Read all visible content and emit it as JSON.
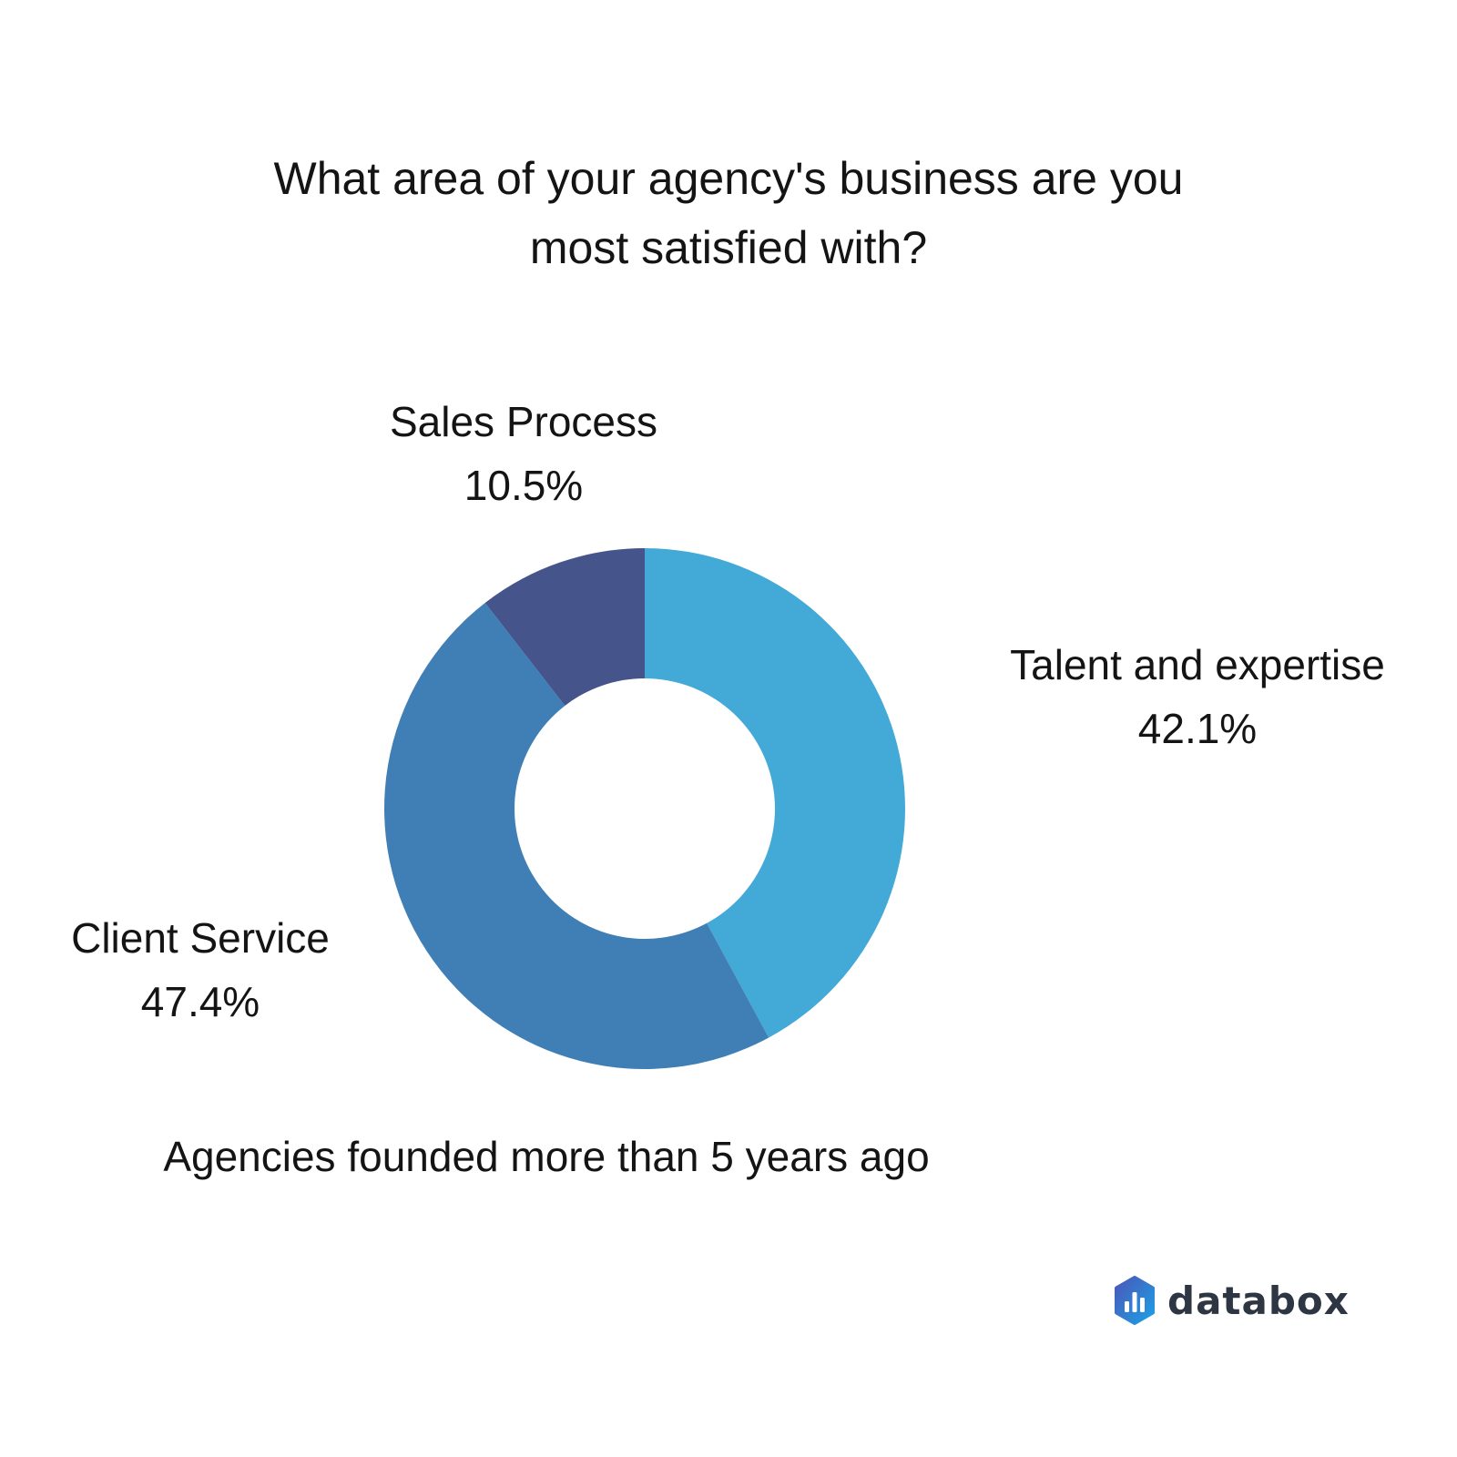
{
  "chart_data": {
    "type": "pie",
    "variant": "donut",
    "title": "What area of your agency's business are you most satisfied with?",
    "title_lines": [
      "What area of your agency's business are you",
      "most satisfied with?"
    ],
    "subtitle": "Agencies founded more than 5 years ago",
    "slices": [
      {
        "label": "Talent and expertise",
        "value": 42.1,
        "display": "42.1%",
        "color": "#43a9d6"
      },
      {
        "label": "Client Service",
        "value": 47.4,
        "display": "47.4%",
        "color": "#407fb5"
      },
      {
        "label": "Sales Process",
        "value": 10.5,
        "display": "10.5%",
        "color": "#45548b"
      }
    ],
    "start_angle": "12 o'clock",
    "direction": "clockwise",
    "legend": "none"
  },
  "brand": {
    "name": "databox",
    "icon": "databox-logo-icon",
    "icon_color": "#2b7fd6"
  }
}
